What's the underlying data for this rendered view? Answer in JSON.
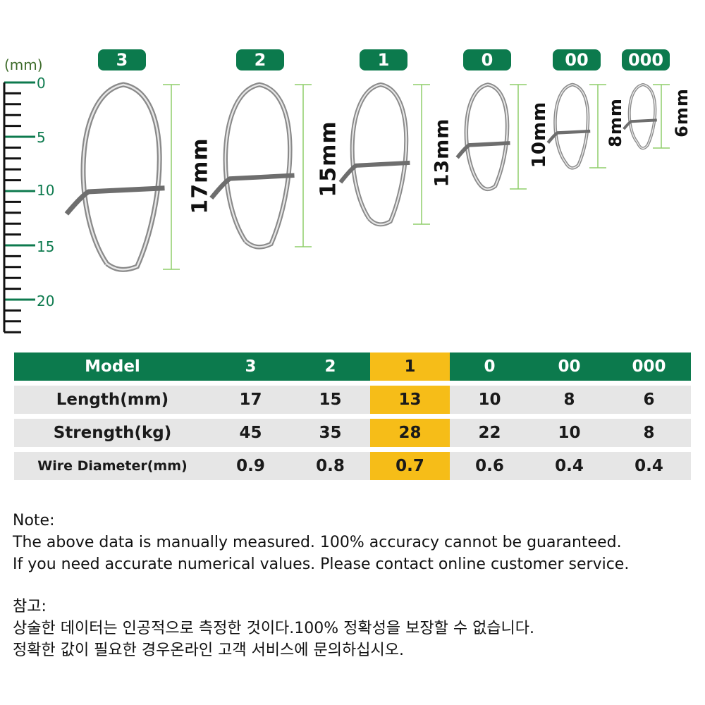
{
  "ruler": {
    "unit": "(mm)",
    "labels": [
      "0",
      "5",
      "10",
      "15",
      "20"
    ]
  },
  "snaps": [
    {
      "model": "3",
      "length_label": "17mm"
    },
    {
      "model": "2",
      "length_label": "15mm"
    },
    {
      "model": "1",
      "length_label": "13mm"
    },
    {
      "model": "0",
      "length_label": "10mm"
    },
    {
      "model": "00",
      "length_label": "8mm"
    },
    {
      "model": "000",
      "length_label": "6mm"
    }
  ],
  "table": {
    "header": {
      "label": "Model",
      "values": [
        "3",
        "2",
        "1",
        "0",
        "00",
        "000"
      ]
    },
    "rows": [
      {
        "label": "Length(mm)",
        "values": [
          "17",
          "15",
          "13",
          "10",
          "8",
          "6"
        ]
      },
      {
        "label": "Strength(kg)",
        "values": [
          "45",
          "35",
          "28",
          "22",
          "10",
          "8"
        ]
      },
      {
        "label": "Wire Diameter(mm)",
        "values": [
          "0.9",
          "0.8",
          "0.7",
          "0.6",
          "0.4",
          "0.4"
        ]
      }
    ],
    "highlight_column": 2
  },
  "notes": {
    "en_title": "Note:",
    "en_line1": "The above data is manually measured. 100% accuracy cannot be guaranteed.",
    "en_line2": "If you need accurate numerical values. Please contact online customer service.",
    "ko_title": "참고:",
    "ko_line1": "상술한 데이터는 인공적으로 측정한 것이다.100% 정확성을 보장할 수 없습니다.",
    "ko_line2": "정확한 값이 필요한 경우온라인 고객 서비스에 문의하십시오."
  },
  "colors": {
    "brand_green": "#0c7a4d",
    "highlight_yellow": "#f6bd18",
    "row_gray": "#e6e6e6"
  },
  "icons": [
    "ruler-icon",
    "snap-clip-icon"
  ]
}
